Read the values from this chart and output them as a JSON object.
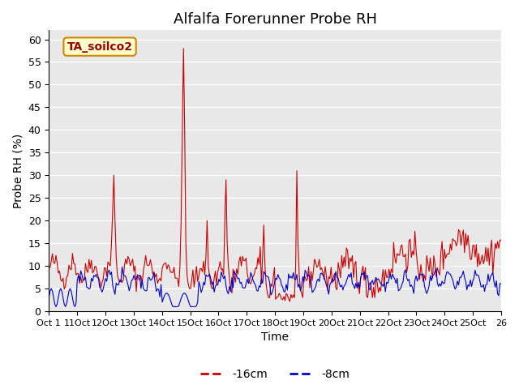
{
  "title": "Alfalfa Forerunner Probe RH",
  "ylabel": "Probe RH (%)",
  "xlabel": "Time",
  "annotation_text": "TA_soilco2",
  "annotation_bg": "#FFFFCC",
  "annotation_border": "#CC8800",
  "annotation_text_color": "#990000",
  "ylim": [
    0,
    62
  ],
  "yticks": [
    0,
    5,
    10,
    15,
    20,
    25,
    30,
    35,
    40,
    45,
    50,
    55,
    60
  ],
  "xtick_labels": [
    "Oct 1",
    "11Oct",
    "12Oct",
    "13Oct",
    "14Oct",
    "15Oct",
    "16Oct",
    "17Oct",
    "18Oct",
    "19Oct",
    "20Oct",
    "21Oct",
    "22Oct",
    "23Oct",
    "24Oct",
    "25Oct",
    "26"
  ],
  "legend_labels": [
    "-16cm",
    "-8cm"
  ],
  "line_red_color": "#CC0000",
  "line_blue_color": "#0000CC",
  "bg_color": "#E8E8E8",
  "fig_bg_color": "#FFFFFF",
  "grid_color": "#FFFFFF",
  "title_fontsize": 13,
  "label_fontsize": 10,
  "tick_fontsize": 9
}
